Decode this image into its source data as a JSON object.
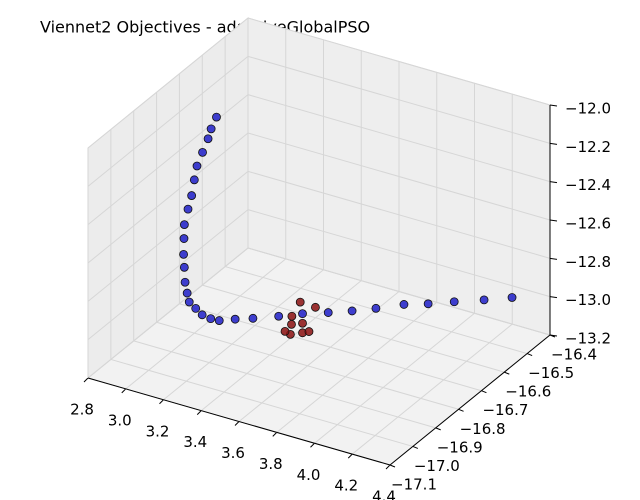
{
  "chart_data": {
    "type": "scatter3d",
    "title": "Viennet2 Objectives - adaptiveGlobalPSO",
    "xlim": [
      2.8,
      4.4
    ],
    "xticks": [
      2.8,
      {
        "value": 3.0,
        "label": "3.0"
      },
      3.2,
      3.4,
      3.6,
      3.8,
      {
        "value": 4.0,
        "label": "4.0"
      },
      4.2,
      4.4
    ],
    "ylim": [
      -17.1,
      -16.4
    ],
    "yticks": [
      {
        "value": -17.1,
        "label": "−17.1"
      },
      {
        "value": -17.0,
        "label": "−17.0"
      },
      {
        "value": -16.9,
        "label": "−16.9"
      },
      {
        "value": -16.8,
        "label": "−16.8"
      },
      {
        "value": -16.7,
        "label": "−16.7"
      },
      {
        "value": -16.6,
        "label": "−16.6"
      },
      {
        "value": -16.5,
        "label": "−16.5"
      },
      {
        "value": -16.4,
        "label": "−16.4"
      }
    ],
    "zlim": [
      -13.2,
      -12.0
    ],
    "zticks": [
      {
        "value": -13.2,
        "label": "−13.2"
      },
      {
        "value": -13.0,
        "label": "−13.0"
      },
      {
        "value": -12.8,
        "label": "−12.8"
      },
      {
        "value": -12.6,
        "label": "−12.6"
      },
      {
        "value": -12.4,
        "label": "−12.4"
      },
      {
        "value": -12.2,
        "label": "−12.2"
      },
      {
        "value": -12.0,
        "label": "−12.0"
      }
    ],
    "grid": true,
    "series": [
      {
        "color": "#1f1fc8",
        "x": [
          2.96,
          2.968,
          2.976,
          2.983,
          2.99,
          3.0,
          3.01,
          3.015,
          3.02,
          3.03,
          3.04,
          3.05,
          3.06,
          3.065,
          3.07,
          3.08,
          3.09,
          3.105,
          3.12,
          3.18,
          3.25,
          3.35,
          3.44,
          3.54,
          3.63,
          3.72,
          3.82,
          3.93,
          4.05,
          4.19,
          4.32
        ],
        "y": [
          -16.67,
          -16.7,
          -16.72,
          -16.75,
          -16.78,
          -16.8,
          -16.82,
          -16.84,
          -16.86,
          -16.87,
          -16.88,
          -16.885,
          -16.89,
          -16.885,
          -16.88,
          -16.86,
          -16.84,
          -16.815,
          -16.79,
          -16.77,
          -16.75,
          -16.72,
          -16.69,
          -16.66,
          -16.63,
          -16.6,
          -16.56,
          -16.545,
          -16.53,
          -16.515,
          -16.5
        ],
        "z": [
          -12.21,
          -12.24,
          -12.27,
          -12.31,
          -12.35,
          -12.4,
          -12.46,
          -12.51,
          -12.57,
          -12.63,
          -12.7,
          -12.76,
          -12.83,
          -12.89,
          -12.94,
          -12.99,
          -13.04,
          -13.08,
          -13.11,
          -13.105,
          -13.1,
          -13.09,
          -13.08,
          -13.075,
          -13.07,
          -13.06,
          -13.05,
          -13.03,
          -13.0,
          -12.965,
          -12.93
        ]
      },
      {
        "color": "#8b1010",
        "x": [
          3.44,
          3.46,
          3.42,
          3.43,
          3.44,
          3.4,
          3.45,
          3.42,
          3.44
        ],
        "y": [
          -16.7,
          -16.65,
          -16.72,
          -16.73,
          -16.69,
          -16.71,
          -16.67,
          -16.75,
          -16.69
        ],
        "z": [
          -13.01,
          -13.08,
          -13.07,
          -13.1,
          -13.18,
          -13.18,
          -13.19,
          -13.12,
          -13.13
        ]
      }
    ]
  }
}
